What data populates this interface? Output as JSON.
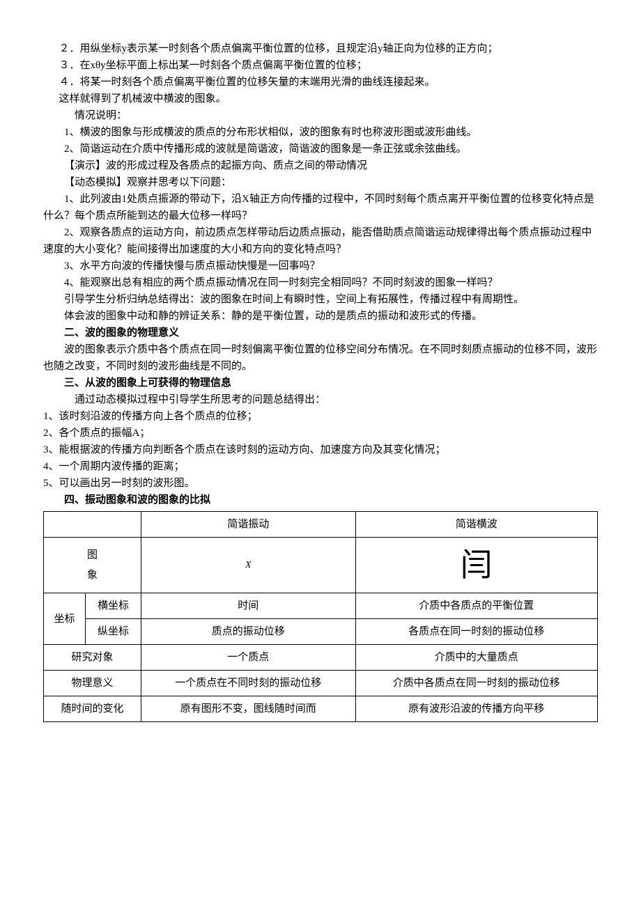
{
  "lines": {
    "l1": "２．用纵坐标y表示某一时刻各个质点偏离平衡位置的位移，且规定沿y轴正向为位移的正方向；",
    "l2": "３．在xθy坐标平面上标出某一时刻各个质点偏离平衡位置的位移；",
    "l3": "４．将某一时刻各个质点偏离平衡位置的位移矢量的末端用光滑的曲线连接起来。",
    "l4": "这样就得到了机械波中横波的图象。",
    "l5": "情况说明：",
    "l6": "1、横波的图象与形成横波的质点的分布形状相似，波的图象有时也称波形图或波形曲线。",
    "l7": "2、简谐运动在介质中传播形成的波就是简谐波，简谐波的图象是一条正弦或余弦曲线。",
    "l8": "【演示】波的形成过程及各质点的起振方向、质点之间的带动情况",
    "l9": "【动态模拟】观察并思考以下问题：",
    "l10": "1、此列波由1处质点振源的带动下，沿X轴正方向传播的过程中，不同时刻每个质点离开平衡位置的位移变化特点是什么？每个质点所能到达的最大位移一样吗？",
    "l11": "2、观察各质点的运动方向，前边质点怎样带动后边质点振动，能否借助质点简谐运动规律得出每个质点振动过程中速度的大小变化？能间接得出加速度的大小和方向的变化特点吗？",
    "l12": "3、水平方向波的传播快慢与质点振动快慢是一回事吗？",
    "l13": "4、能观察出总有相应的两个质点振动情况在同一时刻完全相同吗？不同时刻波的图象一样吗？",
    "l14": "引导学生分析归纳总结得出：波的图象在时间上有瞬时性，空间上有拓展性，传播过程中有周期性。",
    "l15": "体会波的图象中动和静的辨证关系：静的是平衡位置，动的是质点的振动和波形式的传播。",
    "h2": "二、波的图象的物理意义",
    "l16": "波的图象表示介质中各个质点在同一时刻偏离平衡位置的位移空间分布情况。在不同时刻质点振动的位移不同，波形也随之改变，不同时刻的波形曲线是不同的。",
    "h3": "三、从波的图象上可获得的物理信息",
    "l17": "通过动态模拟过程中引导学生所思考的问题总结得出：",
    "l18": "1、该时刻沿波的传播方向上各个质点的位移；",
    "l19": "2、各个质点的振幅A；",
    "l20": "3、能根据波的传播方向判断各个质点在该时刻的运动方向、加速度方向及其变化情况；",
    "l21": "4、一个周期内波传播的距离；",
    "l22": "5、可以画出另一时刻的波形图。",
    "h4": "四、振动图象和波的图象的比拟"
  },
  "table": {
    "headers": {
      "c1": "简谐振动",
      "c2": "简谐横波"
    },
    "chart_axis": "X",
    "chart_glyph": "闫",
    "row_labels": {
      "image": "图\n象",
      "coord": "坐标",
      "hcoord": "横坐标",
      "vcoord": "纵坐标",
      "subject": "研究对象",
      "meaning": "物理意义",
      "time": "随时间的变化"
    },
    "cells": {
      "hcoord_c1": "时间",
      "hcoord_c2": "介质中各质点的平衡位置",
      "vcoord_c1": "质点的振动位移",
      "vcoord_c2": "各质点在同一时刻的振动位移",
      "subject_c1": "一个质点",
      "subject_c2": "介质中的大量质点",
      "meaning_c1": "一个质点在不同时刻的振动位移",
      "meaning_c2": "介质中各质点在同一时刻的振动位移",
      "time_c1": "原有图形不变，图线随时间而",
      "time_c2": "原有波形沿波的传播方向平移"
    },
    "col_widths": {
      "label": 60,
      "sublabel": 80,
      "c1": 280,
      "c2": 320
    }
  },
  "colors": {
    "text": "#000000",
    "bg": "#ffffff",
    "border": "#000000"
  },
  "font": {
    "family": "SimSun",
    "size_body": 15,
    "size_table": 15
  }
}
